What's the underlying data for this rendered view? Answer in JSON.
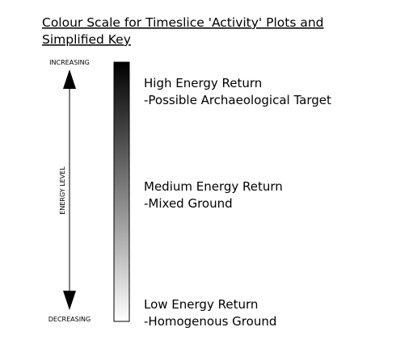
{
  "title": [
    "Colour Scale for Timeslice 'Activity' Plots and",
    "Simplified Key"
  ],
  "scale": {
    "top_label": "INCREASING",
    "axis_label": "ENERGY LEVEL",
    "bottom_label": "DECREASING"
  },
  "key": [
    {
      "name": "High Energy Return",
      "description": "-Possible Archaeological Target"
    },
    {
      "name": "Medium Energy Return",
      "description": "-Mixed Ground"
    },
    {
      "name": "Low Energy Return",
      "description": "-Homogenous Ground"
    }
  ]
}
